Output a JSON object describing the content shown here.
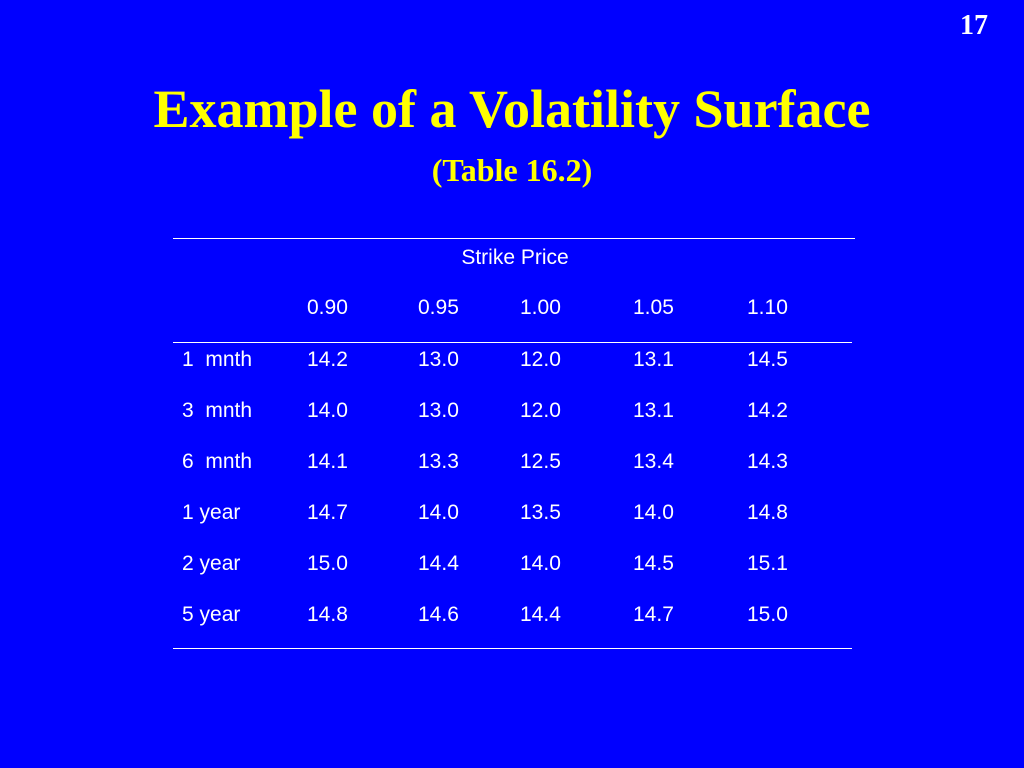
{
  "page_number": "17",
  "title": "Example of a Volatility Surface",
  "subtitle": "(Table 16.2)",
  "table": {
    "group_header": "Strike Price",
    "columns": [
      "0.90",
      "0.95",
      "1.00",
      "1.05",
      "1.10"
    ],
    "rows": [
      [
        "1  mnth",
        "14.2",
        "13.0",
        "12.0",
        "13.1",
        "14.5"
      ],
      [
        "3  mnth",
        "14.0",
        "13.0",
        "12.0",
        "13.1",
        "14.2"
      ],
      [
        "6  mnth",
        "14.1",
        "13.3",
        "12.5",
        "13.4",
        "14.3"
      ],
      [
        "1 year",
        "14.7",
        "14.0",
        "13.5",
        "14.0",
        "14.8"
      ],
      [
        "2 year",
        "15.0",
        "14.4",
        "14.0",
        "14.5",
        "15.1"
      ],
      [
        "5 year",
        "14.8",
        "14.6",
        "14.4",
        "14.7",
        "15.0"
      ]
    ]
  }
}
